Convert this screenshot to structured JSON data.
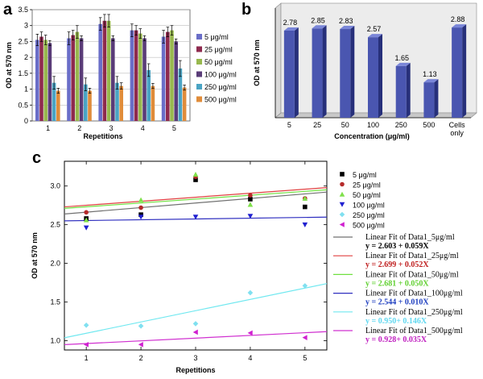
{
  "panels": {
    "a": "a",
    "b": "b",
    "c": "c"
  },
  "chart_data": [
    {
      "id": "a",
      "type": "bar",
      "ylabel": "OD at 570 nm",
      "xlabel": "Repetitions",
      "categories": [
        "1",
        "2",
        "3",
        "4",
        "5"
      ],
      "ylim": [
        0,
        3.5
      ],
      "yticks": [
        "0",
        "0.5",
        "1",
        "1.5",
        "2",
        "2.5",
        "3",
        "3.5"
      ],
      "grid": true,
      "legend_position": "right",
      "series": [
        {
          "name": "5 μg/ml",
          "color": "#6a6ec8",
          "values": [
            2.55,
            2.6,
            3.05,
            2.85,
            2.65
          ],
          "errors": [
            0.18,
            0.2,
            0.2,
            0.2,
            0.2
          ]
        },
        {
          "name": "25 μg/ml",
          "color": "#8e2a4e",
          "values": [
            2.65,
            2.7,
            3.15,
            2.85,
            2.8
          ],
          "errors": [
            0.15,
            0.15,
            0.2,
            0.15,
            0.15
          ]
        },
        {
          "name": "50 μg/ml",
          "color": "#98b84e",
          "values": [
            2.55,
            2.8,
            3.15,
            2.75,
            2.85
          ],
          "errors": [
            0.15,
            0.2,
            0.2,
            0.15,
            0.15
          ]
        },
        {
          "name": "100 μg/ml",
          "color": "#5a3c78",
          "values": [
            2.45,
            2.6,
            2.6,
            2.6,
            2.5
          ],
          "errors": [
            0.08,
            0.08,
            0.08,
            0.08,
            0.08
          ]
        },
        {
          "name": "250 μg/ml",
          "color": "#4aa4c4",
          "values": [
            1.2,
            1.15,
            1.2,
            1.6,
            1.65
          ],
          "errors": [
            0.2,
            0.2,
            0.2,
            0.2,
            0.25
          ]
        },
        {
          "name": "500 μg/ml",
          "color": "#e08c3a",
          "values": [
            0.95,
            0.95,
            1.1,
            1.1,
            1.05
          ],
          "errors": [
            0.08,
            0.08,
            0.1,
            0.08,
            0.08
          ]
        }
      ]
    },
    {
      "id": "b",
      "type": "bar",
      "ylabel": "OD at 570 nm",
      "xlabel": "Concentration (μg/ml)",
      "categories": [
        "5",
        "25",
        "50",
        "100",
        "250",
        "500",
        "Cells only"
      ],
      "values": [
        2.78,
        2.85,
        2.83,
        2.57,
        1.65,
        1.13,
        2.88
      ],
      "value_labels": [
        "2.78",
        "2.85",
        "2.83",
        "2.57",
        "1.65",
        "1.13",
        "2.88"
      ],
      "ylim": [
        0,
        3.5
      ],
      "color": "#4a56b0",
      "grid": false
    },
    {
      "id": "c",
      "type": "scatter",
      "ylabel": "OD at  570 nm",
      "xlabel": "Repetitions",
      "xlim": [
        0.6,
        5.4
      ],
      "ylim": [
        0.88,
        3.32
      ],
      "xticks": [
        "1",
        "2",
        "3",
        "4",
        "5"
      ],
      "yticks": [
        "1.0",
        "1.5",
        "2.0",
        "2.5",
        "3.0"
      ],
      "legend_position": "right",
      "series": [
        {
          "name": "5 μg/ml",
          "marker": "square",
          "color": "#000000",
          "x": [
            1,
            2,
            3,
            4,
            5
          ],
          "y": [
            2.58,
            2.63,
            3.08,
            2.83,
            2.73
          ]
        },
        {
          "name": "25 μg/ml",
          "marker": "circle",
          "color": "#b52a2a",
          "x": [
            1,
            2,
            3,
            4,
            5
          ],
          "y": [
            2.66,
            2.72,
            3.12,
            2.88,
            2.84
          ]
        },
        {
          "name": "50 μg/ml",
          "marker": "triangle-up",
          "color": "#7fe04a",
          "x": [
            1,
            2,
            3,
            4,
            5
          ],
          "y": [
            2.56,
            2.82,
            3.15,
            2.76,
            2.84
          ]
        },
        {
          "name": "100 μg/ml",
          "marker": "triangle-down",
          "color": "#2020d0",
          "x": [
            1,
            2,
            3,
            4,
            5
          ],
          "y": [
            2.46,
            2.6,
            2.6,
            2.61,
            2.5
          ]
        },
        {
          "name": "250 μg/ml",
          "marker": "diamond",
          "color": "#80e0f0",
          "x": [
            1,
            2,
            3,
            4,
            5
          ],
          "y": [
            1.2,
            1.19,
            1.22,
            1.62,
            1.71
          ]
        },
        {
          "name": "500 μg/ml",
          "marker": "triangle-left",
          "color": "#d020d0",
          "x": [
            1,
            2,
            3,
            4,
            5
          ],
          "y": [
            0.95,
            0.95,
            1.11,
            1.1,
            1.04
          ]
        }
      ],
      "fits": [
        {
          "name": "Linear Fit of Data1_5μg/ml",
          "equation": "y = 2.603 + 0.059X",
          "intercept": 2.603,
          "slope": 0.059,
          "line_color": "#707070",
          "text_color": "#000000"
        },
        {
          "name": "Linear Fit of Data1_25μg/ml",
          "equation": "y = 2.699 + 0.052X",
          "intercept": 2.699,
          "slope": 0.052,
          "line_color": "#e04040",
          "text_color": "#c02020"
        },
        {
          "name": "Linear Fit of Data1_50μg/ml",
          "equation": "y = 2.681 + 0.050X",
          "intercept": 2.681,
          "slope": 0.05,
          "line_color": "#70e040",
          "text_color": "#60d030"
        },
        {
          "name": "Linear Fit of Data1_100μg/ml",
          "equation": "y = 2.544 + 0.010X",
          "intercept": 2.544,
          "slope": 0.01,
          "line_color": "#3030c0",
          "text_color": "#2040c0"
        },
        {
          "name": "Linear Fit of Data1_250μg/ml",
          "equation": "y = 0.950+ 0.146X",
          "intercept": 0.95,
          "slope": 0.146,
          "line_color": "#70e8f0",
          "text_color": "#60d8f0"
        },
        {
          "name": "Linear Fit of Data1_500μg/ml",
          "equation": "y = 0.928+ 0.035X",
          "intercept": 0.928,
          "slope": 0.035,
          "line_color": "#d030d0",
          "text_color": "#c020c0"
        }
      ]
    }
  ]
}
